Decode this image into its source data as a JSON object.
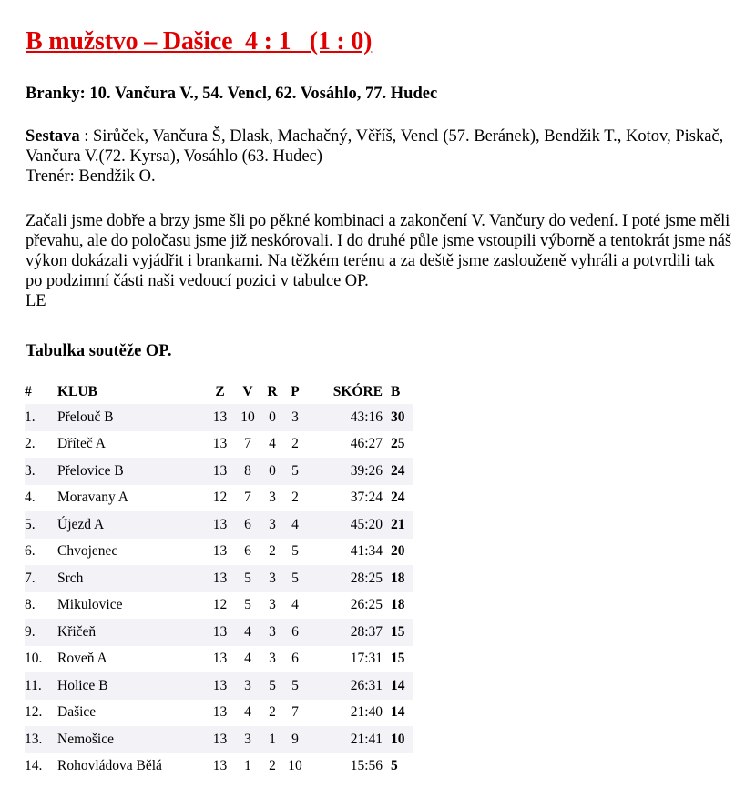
{
  "title": "B mužstvo – Dašice  4 : 1   (1 : 0)",
  "goals": "Branky: 10. Vančura V., 54. Vencl, 62. Vosáhlo, 77. Hudec",
  "lineup_label": "Sestava",
  "lineup": " : Sirůček, Vančura Š, Dlask, Machačný, Věříš, Vencl (57. Beránek), Bendžik T., Kotov, Piskač, Vančura V.(72. Kyrsa), Vosáhlo (63. Hudec)",
  "coach": "Trenér: Bendžik O.",
  "report": "Začali jsme dobře a brzy jsme šli po pěkné kombinaci a zakončení V. Vančury do vedení. I poté jsme měli převahu, ale do poločasu jsme již neskórovali. I do druhé půle jsme vstoupili výborně a tentokrát jsme náš výkon dokázali vyjádřit i brankami. Na těžkém terénu a za deště jsme zaslouženě vyhráli a potvrdili tak po podzimní části naši vedoucí pozici v tabulce OP.",
  "author": "LE",
  "table_title": "Tabulka soutěže OP.",
  "table": {
    "headers": [
      "#",
      "KLUB",
      "Z",
      "V",
      "R",
      "P",
      "SKÓRE",
      "B"
    ],
    "rows": [
      [
        "1.",
        "Přelouč B",
        "13",
        "10",
        "0",
        "3",
        "43:16",
        "30"
      ],
      [
        "2.",
        "Dřítеč A",
        "13",
        "7",
        "4",
        "2",
        "46:27",
        "25"
      ],
      [
        "3.",
        "Přelovice B",
        "13",
        "8",
        "0",
        "5",
        "39:26",
        "24"
      ],
      [
        "4.",
        "Moravany A",
        "12",
        "7",
        "3",
        "2",
        "37:24",
        "24"
      ],
      [
        "5.",
        "Újezd A",
        "13",
        "6",
        "3",
        "4",
        "45:20",
        "21"
      ],
      [
        "6.",
        "Chvojenec",
        "13",
        "6",
        "2",
        "5",
        "41:34",
        "20"
      ],
      [
        "7.",
        "Srch",
        "13",
        "5",
        "3",
        "5",
        "28:25",
        "18"
      ],
      [
        "8.",
        "Mikulovice",
        "12",
        "5",
        "3",
        "4",
        "26:25",
        "18"
      ],
      [
        "9.",
        "Křičeň",
        "13",
        "4",
        "3",
        "6",
        "28:37",
        "15"
      ],
      [
        "10.",
        "Roveň A",
        "13",
        "4",
        "3",
        "6",
        "17:31",
        "15"
      ],
      [
        "11.",
        "Holice B",
        "13",
        "3",
        "5",
        "5",
        "26:31",
        "14"
      ],
      [
        "12.",
        "Dašice",
        "13",
        "4",
        "2",
        "7",
        "21:40",
        "14"
      ],
      [
        "13.",
        "Nemošice",
        "13",
        "3",
        "1",
        "9",
        "21:41",
        "10"
      ],
      [
        "14.",
        "Rohovládova Bělá",
        "13",
        "1",
        "2",
        "10",
        "15:56",
        "5"
      ]
    ]
  }
}
